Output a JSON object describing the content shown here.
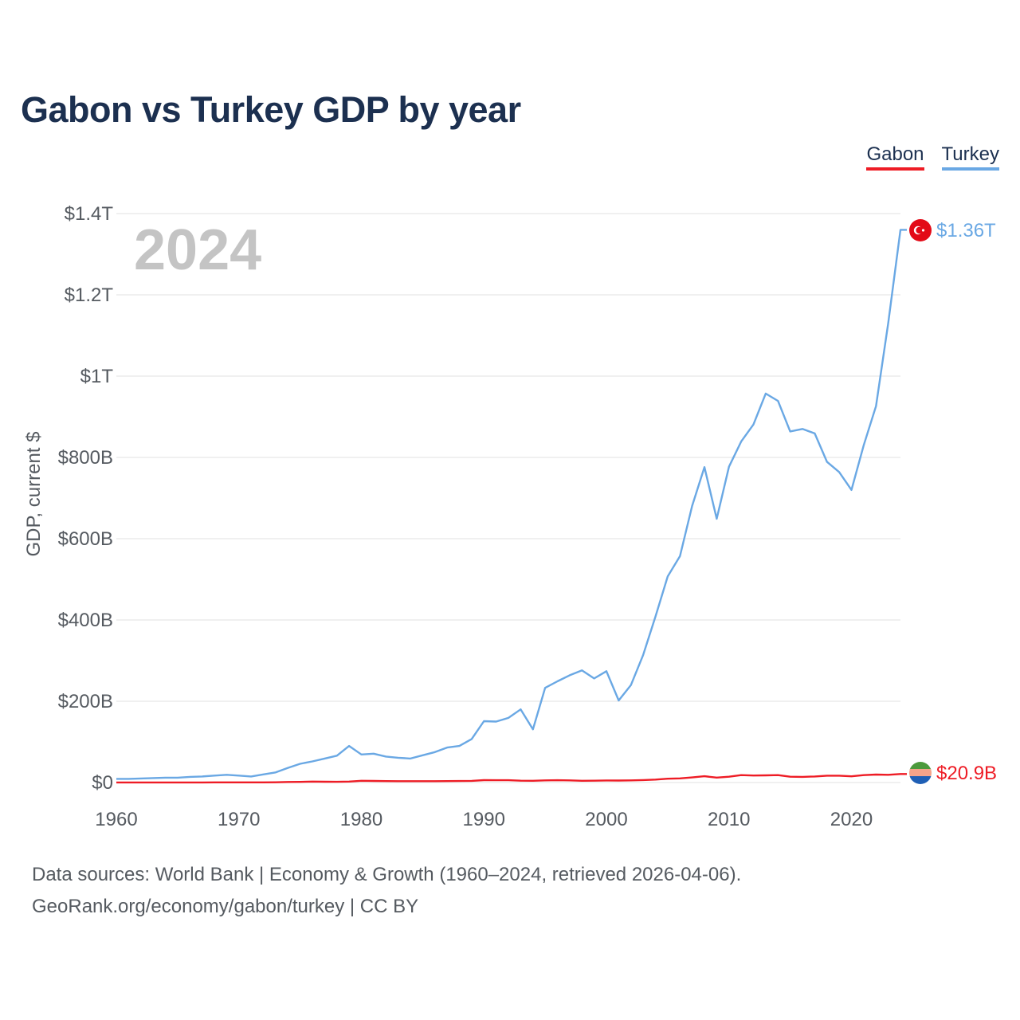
{
  "title": "Gabon vs Turkey GDP by year",
  "legend": [
    {
      "label": "Gabon",
      "color": "#ee1c25"
    },
    {
      "label": "Turkey",
      "color": "#6aa8e4"
    }
  ],
  "footer": {
    "source": "Data sources: World Bank | Economy & Growth (1960–2024, retrieved 2026-04-06).",
    "credit": "GeoRank.org/economy/gabon/turkey | CC BY"
  },
  "chart_data": {
    "type": "line",
    "title": "Gabon vs Turkey GDP by year",
    "ylabel": "GDP, current $",
    "xlabel": "",
    "year_watermark": "2024",
    "xlim": [
      1960,
      2024
    ],
    "ylim": [
      0,
      1400
    ],
    "value_unit": "billion USD",
    "x_ticks": [
      {
        "value": 1960,
        "label": "1960"
      },
      {
        "value": 1970,
        "label": "1970"
      },
      {
        "value": 1980,
        "label": "1980"
      },
      {
        "value": 1990,
        "label": "1990"
      },
      {
        "value": 2000,
        "label": "2000"
      },
      {
        "value": 2010,
        "label": "2010"
      },
      {
        "value": 2020,
        "label": "2020"
      }
    ],
    "y_ticks": [
      {
        "value": 0,
        "label": "$0"
      },
      {
        "value": 200,
        "label": "$200B"
      },
      {
        "value": 400,
        "label": "$400B"
      },
      {
        "value": 600,
        "label": "$600B"
      },
      {
        "value": 800,
        "label": "$800B"
      },
      {
        "value": 1000,
        "label": "$1T"
      },
      {
        "value": 1200,
        "label": "$1.2T"
      },
      {
        "value": 1400,
        "label": "$1.4T"
      }
    ],
    "grid": true,
    "x": [
      1960,
      1961,
      1962,
      1963,
      1964,
      1965,
      1966,
      1967,
      1968,
      1969,
      1970,
      1971,
      1972,
      1973,
      1974,
      1975,
      1976,
      1977,
      1978,
      1979,
      1980,
      1981,
      1982,
      1983,
      1984,
      1985,
      1986,
      1987,
      1988,
      1989,
      1990,
      1991,
      1992,
      1993,
      1994,
      1995,
      1996,
      1997,
      1998,
      1999,
      2000,
      2001,
      2002,
      2003,
      2004,
      2005,
      2006,
      2007,
      2008,
      2009,
      2010,
      2011,
      2012,
      2013,
      2014,
      2015,
      2016,
      2017,
      2018,
      2019,
      2020,
      2021,
      2022,
      2023,
      2024
    ],
    "series": [
      {
        "name": "Gabon",
        "color": "#ee1c25",
        "end_label": "$20.9B",
        "flag": "gabon",
        "values": [
          0.14,
          0.17,
          0.18,
          0.19,
          0.2,
          0.23,
          0.25,
          0.28,
          0.3,
          0.32,
          0.32,
          0.38,
          0.48,
          0.65,
          1.4,
          1.6,
          2.4,
          2.0,
          1.8,
          2.4,
          4.3,
          3.9,
          3.5,
          3.4,
          3.4,
          3.3,
          3.4,
          3.6,
          3.8,
          4.2,
          5.9,
          5.6,
          5.7,
          4.6,
          4.4,
          5.3,
          5.6,
          5.3,
          4.4,
          4.6,
          5.1,
          5.0,
          5.3,
          6.1,
          7.2,
          9.5,
          10.2,
          12.5,
          15.5,
          12.1,
          14.4,
          18.2,
          17.2,
          17.6,
          18.2,
          14.4,
          14.0,
          14.9,
          16.9,
          16.9,
          15.3,
          18.2,
          19.7,
          19.0,
          20.9
        ]
      },
      {
        "name": "Turkey",
        "color": "#6aa8e4",
        "end_label": "$1.36T",
        "flag": "turkey",
        "values": [
          9,
          9,
          10,
          11,
          12,
          12,
          14,
          15,
          17,
          19,
          17,
          15,
          20,
          25,
          36,
          46,
          52,
          59,
          66,
          90,
          69,
          71,
          64,
          61,
          59,
          67,
          75,
          86,
          90,
          107,
          151,
          150,
          159,
          180,
          131,
          233,
          249,
          264,
          276,
          256,
          274,
          202,
          240,
          314,
          408,
          507,
          557,
          681,
          776,
          649,
          777,
          839,
          881,
          957,
          939,
          864,
          870,
          859,
          789,
          764,
          720,
          830,
          926,
          1130,
          1360
        ]
      }
    ]
  }
}
